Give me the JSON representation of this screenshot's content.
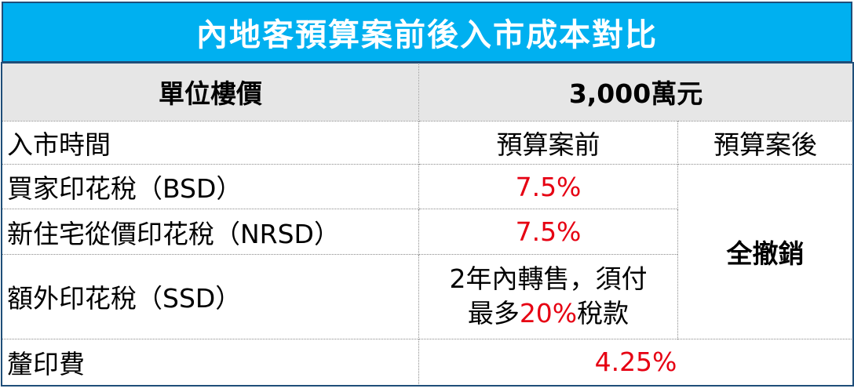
{
  "title": "內地客預算案前後入市成本對比",
  "header": {
    "label": "單位樓價",
    "value": "3,000萬元"
  },
  "rows": {
    "timing": {
      "label": "入市時間",
      "before": "預算案前",
      "after": "預算案後"
    },
    "bsd": {
      "label": "買家印花稅（BSD）",
      "before": "7.5%"
    },
    "nrsd": {
      "label": "新住宅從價印花稅（NRSD）",
      "before": "7.5%"
    },
    "ssd": {
      "label": "額外印花稅（SSD）",
      "line1": "2年內轉售，須付",
      "line2_prefix": "最多",
      "line2_highlight": "20%",
      "line2_suffix": "稅款"
    },
    "after_merged": "全撤銷",
    "fee": {
      "label": "釐印費",
      "value": "4.25%"
    }
  },
  "colors": {
    "title_bg": "#00b0f0",
    "header_bg": "#e6e6e6",
    "highlight_red": "#e60012",
    "border_dark": "#1f4e79"
  }
}
